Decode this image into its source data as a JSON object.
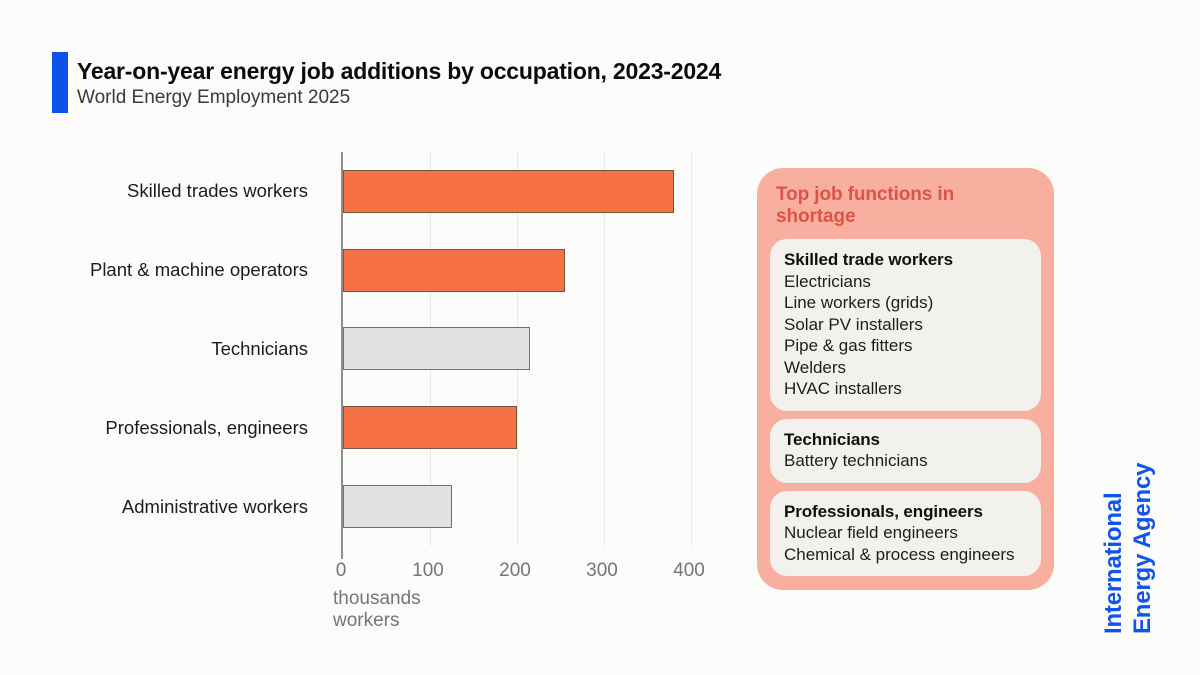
{
  "header": {
    "title": "Year-on-year energy job additions by occupation, 2023-2024",
    "subtitle": "World Energy Employment 2025"
  },
  "chart_data": {
    "type": "bar",
    "orientation": "horizontal",
    "title": "Year-on-year energy job additions by occupation, 2023-2024",
    "subtitle": "World Energy Employment 2025",
    "categories": [
      "Skilled trades workers",
      "Plant & machine operators",
      "Technicians",
      "Professionals, engineers",
      "Administrative workers"
    ],
    "values": [
      380,
      255,
      215,
      200,
      125
    ],
    "bar_colors": [
      "orange",
      "orange",
      "grey",
      "orange",
      "grey"
    ],
    "xlabel": "thousands workers",
    "ylabel": "",
    "xticks": [
      0,
      100,
      200,
      300,
      400
    ],
    "xlim": [
      0,
      400
    ],
    "grid": true,
    "legend_position": "none"
  },
  "shortage_panel": {
    "title": "Top job functions in shortage",
    "groups": [
      {
        "heading": "Skilled trade workers",
        "items": [
          "Electricians",
          "Line workers (grids)",
          "Solar PV installers",
          "Pipe & gas fitters",
          "Welders",
          "HVAC installers"
        ]
      },
      {
        "heading": "Technicians",
        "items": [
          "Battery technicians"
        ]
      },
      {
        "heading": "Professionals, engineers",
        "items": [
          "Nuclear field engineers",
          "Chemical & process engineers"
        ]
      }
    ]
  },
  "branding": {
    "line1": "International",
    "line2": "Energy Agency"
  },
  "colors": {
    "accent_blue": "#0C53E6",
    "brand_blue": "#1253EB",
    "bar_orange": "#F77147",
    "bar_orange_border": "#7A5244",
    "bar_grey": "#E3E2E0",
    "bar_grey_border": "#6F6F6F",
    "panel_bg": "#F8AFA0",
    "panel_title": "#DC5448",
    "card_bg": "#F2F1EE"
  }
}
